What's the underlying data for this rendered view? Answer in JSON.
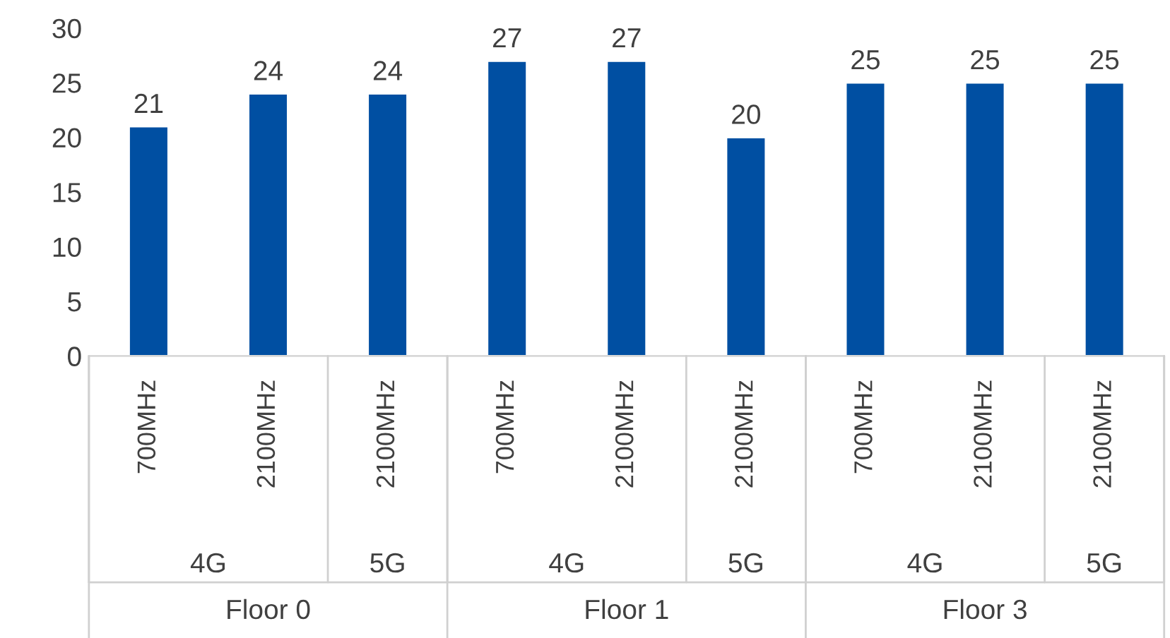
{
  "chart_data": {
    "type": "bar",
    "categories": [
      "700MHz",
      "2100MHz",
      "2100MHz",
      "700MHz",
      "2100MHz",
      "2100MHz",
      "700MHz",
      "2100MHz",
      "2100MHz"
    ],
    "values": [
      21,
      24,
      24,
      27,
      27,
      20,
      25,
      25,
      25
    ],
    "color": "#004fa2",
    "ylim": [
      0,
      30
    ],
    "yticks": [
      0,
      5,
      10,
      15,
      20,
      25,
      30
    ],
    "data_labels": true,
    "annotations": [
      "4G",
      "5G",
      "4G",
      "5G",
      "4G",
      "5G",
      "Floor 0",
      "Floor 1",
      "Floor 3"
    ]
  }
}
